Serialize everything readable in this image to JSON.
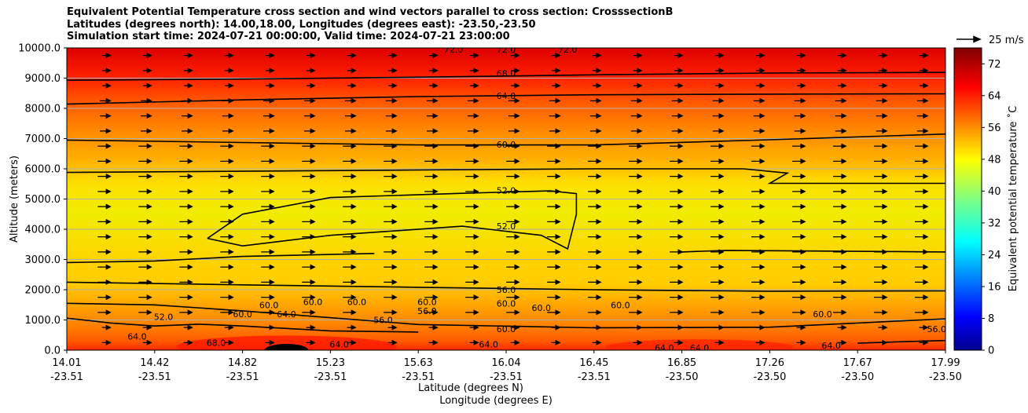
{
  "title_lines": [
    "Equivalent Potential Temperature cross section and wind vectors parallel to cross section: CrosssectionB",
    "Latitudes (degrees north): 14.00,18.00, Longitudes (degrees east): -23.50,-23.50",
    "Simulation start time: 2024-07-21 00:00:00, Valid time: 2024-07-21 23:00:00"
  ],
  "chart_data": {
    "type": "heatmap",
    "subtype": "filled contour cross section with line contours and wind vectors",
    "ylabel": "Altitude (meters)",
    "xlabel_lines": [
      "Latitude (degrees N)",
      "Longitude (degrees E)"
    ],
    "ylim": [
      0,
      10000
    ],
    "y_ticks": [
      "0.0",
      "1000.0",
      "2000.0",
      "3000.0",
      "4000.0",
      "5000.0",
      "6000.0",
      "7000.0",
      "8000.0",
      "9000.0",
      "10000.0"
    ],
    "x_ticks": [
      {
        "lat": "14.01",
        "lon": "-23.51"
      },
      {
        "lat": "14.42",
        "lon": "-23.51"
      },
      {
        "lat": "14.82",
        "lon": "-23.51"
      },
      {
        "lat": "15.23",
        "lon": "-23.51"
      },
      {
        "lat": "15.63",
        "lon": "-23.51"
      },
      {
        "lat": "16.04",
        "lon": "-23.51"
      },
      {
        "lat": "16.45",
        "lon": "-23.51"
      },
      {
        "lat": "16.85",
        "lon": "-23.50"
      },
      {
        "lat": "17.26",
        "lon": "-23.50"
      },
      {
        "lat": "17.67",
        "lon": "-23.50"
      },
      {
        "lat": "17.99",
        "lon": "-23.50"
      }
    ],
    "grid": "horizontal",
    "colorbar": {
      "label": "Equivalent potential temperature $^\\circ$C",
      "label_display": "Equivalent potential temperature ˚C",
      "range": [
        0,
        76
      ],
      "ticks": [
        "0",
        "8",
        "16",
        "24",
        "32",
        "40",
        "48",
        "56",
        "64",
        "72"
      ],
      "colormap": "jet"
    },
    "quiver_key": {
      "label": "25 m/s"
    },
    "contour_labels": [
      {
        "text": "72.0",
        "x": 0.44,
        "y": 9950
      },
      {
        "text": "72.0",
        "x": 0.5,
        "y": 9950
      },
      {
        "text": "72.0",
        "x": 0.57,
        "y": 9950
      },
      {
        "text": "68.0",
        "x": 0.5,
        "y": 9150
      },
      {
        "text": "64.0",
        "x": 0.5,
        "y": 8420
      },
      {
        "text": "60.0",
        "x": 0.5,
        "y": 6800
      },
      {
        "text": "52.0",
        "x": 0.5,
        "y": 5280
      },
      {
        "text": "52.0",
        "x": 0.5,
        "y": 4100
      },
      {
        "text": "56.0",
        "x": 0.5,
        "y": 2000
      },
      {
        "text": "60.0",
        "x": 0.28,
        "y": 1600
      },
      {
        "text": "60.0",
        "x": 0.5,
        "y": 1550
      },
      {
        "text": "60.0",
        "x": 0.5,
        "y": 700
      },
      {
        "text": "60.0",
        "x": 0.2,
        "y": 1200
      },
      {
        "text": "64.0",
        "x": 0.08,
        "y": 450
      },
      {
        "text": "68.0",
        "x": 0.17,
        "y": 250
      },
      {
        "text": "64.0",
        "x": 0.31,
        "y": 200
      },
      {
        "text": "64.0",
        "x": 0.48,
        "y": 200
      },
      {
        "text": "64.0",
        "x": 0.68,
        "y": 80
      },
      {
        "text": "64.0",
        "x": 0.72,
        "y": 80
      },
      {
        "text": "64.0",
        "x": 0.87,
        "y": 150
      },
      {
        "text": "52.0",
        "x": 0.11,
        "y": 1100
      },
      {
        "text": "56.0",
        "x": 0.36,
        "y": 1000
      },
      {
        "text": "56.0",
        "x": 0.41,
        "y": 1300
      },
      {
        "text": "60.0",
        "x": 0.23,
        "y": 1500
      },
      {
        "text": "60.0",
        "x": 0.33,
        "y": 1600
      },
      {
        "text": "60.0",
        "x": 0.41,
        "y": 1600
      },
      {
        "text": "60.0",
        "x": 0.54,
        "y": 1400
      },
      {
        "text": "60.0",
        "x": 0.63,
        "y": 1500
      },
      {
        "text": "60.0",
        "x": 0.86,
        "y": 1200
      },
      {
        "text": "56.0",
        "x": 0.99,
        "y": 700
      },
      {
        "text": "64.0",
        "x": 0.25,
        "y": 1200
      }
    ],
    "contour_lines": [
      {
        "level": 68,
        "points": [
          [
            0,
            8930
          ],
          [
            0.2,
            8970
          ],
          [
            0.4,
            9030
          ],
          [
            0.6,
            9110
          ],
          [
            0.8,
            9170
          ],
          [
            1,
            9190
          ]
        ]
      },
      {
        "level": 64,
        "points": [
          [
            0,
            8140
          ],
          [
            0.2,
            8280
          ],
          [
            0.4,
            8390
          ],
          [
            0.6,
            8450
          ],
          [
            0.8,
            8470
          ],
          [
            1,
            8480
          ]
        ]
      },
      {
        "level": 60,
        "points": [
          [
            0,
            6950
          ],
          [
            0.2,
            6870
          ],
          [
            0.4,
            6790
          ],
          [
            0.6,
            6790
          ],
          [
            0.8,
            6960
          ],
          [
            1,
            7150
          ]
        ]
      },
      {
        "level": 56,
        "points": [
          [
            0,
            5880
          ],
          [
            0.2,
            5920
          ],
          [
            0.4,
            5960
          ],
          [
            0.6,
            6000
          ],
          [
            0.77,
            6000
          ],
          [
            0.82,
            5860
          ],
          [
            0.8,
            5520
          ],
          [
            1,
            5520
          ]
        ]
      },
      {
        "level": 52,
        "points": [
          [
            0.16,
            3700
          ],
          [
            0.2,
            4500
          ],
          [
            0.3,
            5050
          ],
          [
            0.45,
            5190
          ],
          [
            0.55,
            5270
          ],
          [
            0.58,
            5180
          ],
          [
            0.58,
            4500
          ],
          [
            0.57,
            3350
          ],
          [
            0.54,
            3800
          ],
          [
            0.45,
            4100
          ],
          [
            0.3,
            3800
          ],
          [
            0.2,
            3450
          ],
          [
            0.16,
            3700
          ]
        ]
      },
      {
        "level": 52,
        "points": [
          [
            0,
            2900
          ],
          [
            0.1,
            2950
          ],
          [
            0.2,
            3100
          ],
          [
            0.35,
            3200
          ]
        ]
      },
      {
        "level": 52,
        "points": [
          [
            0.7,
            3250
          ],
          [
            0.75,
            3300
          ],
          [
            1,
            3250
          ]
        ]
      },
      {
        "level": 56,
        "points": [
          [
            0,
            2250
          ],
          [
            0.2,
            2160
          ],
          [
            0.4,
            2080
          ],
          [
            0.6,
            2000
          ],
          [
            0.8,
            1950
          ],
          [
            1,
            1960
          ]
        ]
      },
      {
        "level": 60,
        "points": [
          [
            0,
            1550
          ],
          [
            0.1,
            1500
          ],
          [
            0.2,
            1300
          ],
          [
            0.4,
            850
          ],
          [
            0.6,
            740
          ],
          [
            0.8,
            760
          ],
          [
            0.9,
            900
          ],
          [
            1,
            1040
          ]
        ]
      },
      {
        "level": 64,
        "points": [
          [
            0,
            1060
          ],
          [
            0.05,
            900
          ],
          [
            0.1,
            800
          ],
          [
            0.15,
            860
          ],
          [
            0.2,
            800
          ],
          [
            0.3,
            640
          ],
          [
            0.4,
            600
          ]
        ]
      },
      {
        "level": 64,
        "points": [
          [
            0.9,
            230
          ],
          [
            0.95,
            280
          ],
          [
            1,
            320
          ]
        ]
      }
    ]
  }
}
